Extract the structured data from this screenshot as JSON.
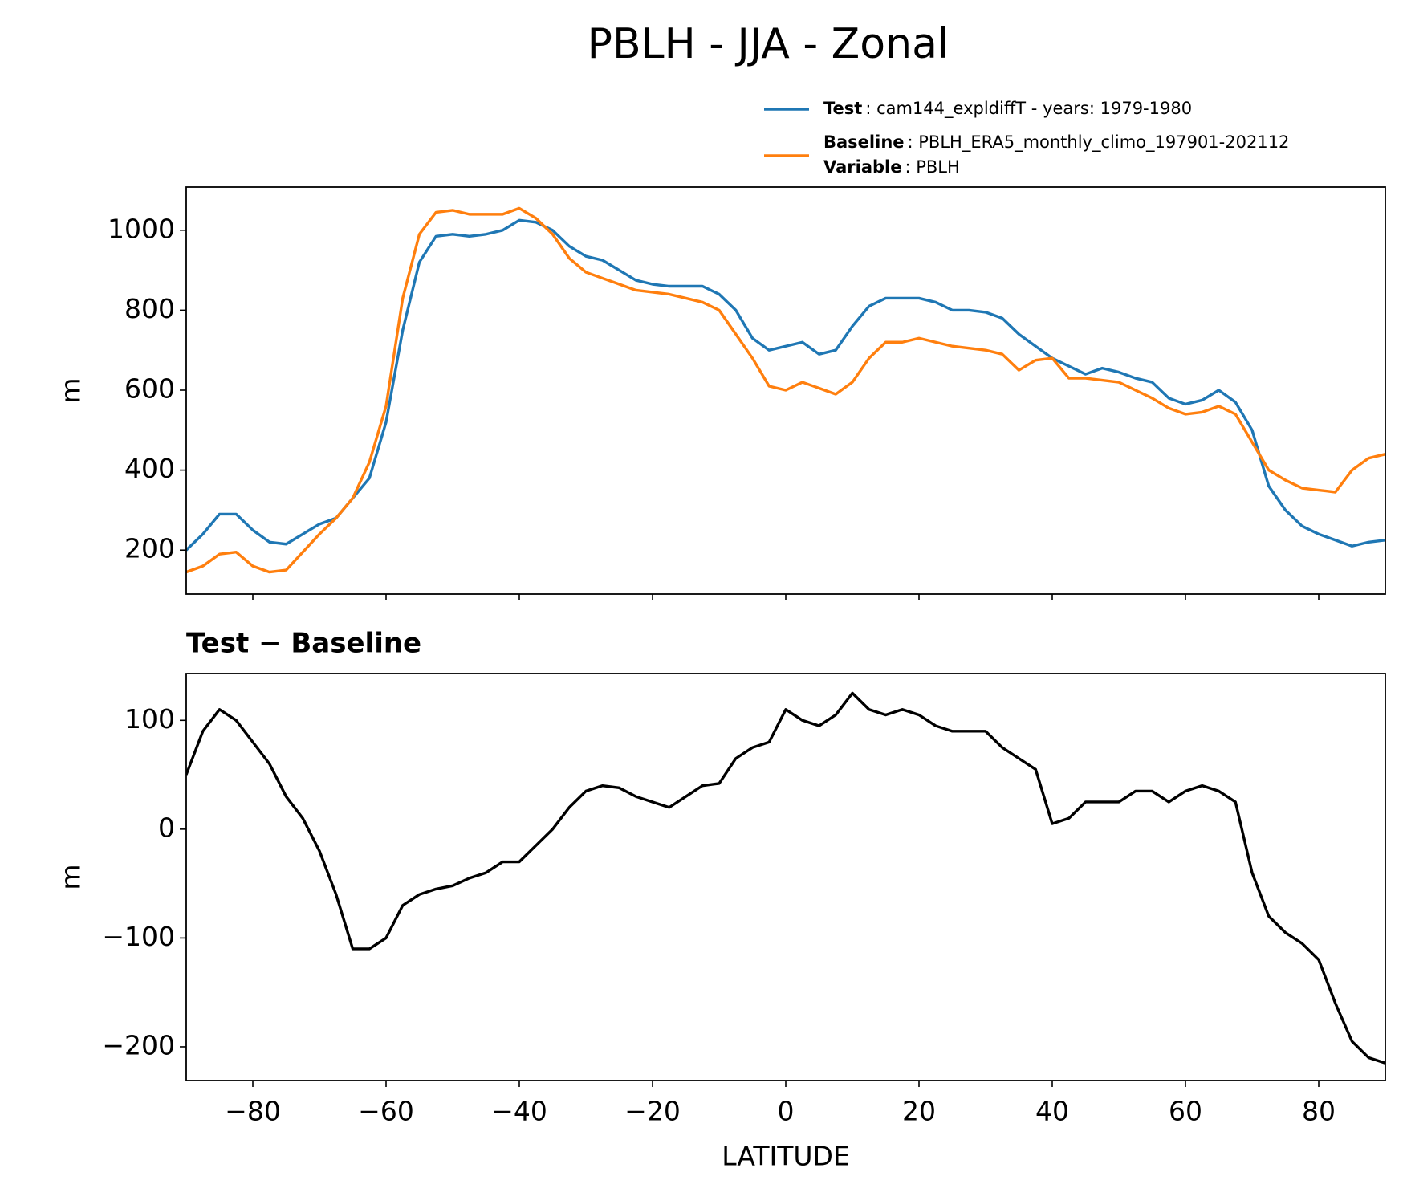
{
  "chart_data": [
    {
      "type": "line",
      "title": "PBLH - JJA - Zonal",
      "ylabel": "m",
      "x": [
        -90,
        -87.5,
        -85,
        -82.5,
        -80,
        -77.5,
        -75,
        -72.5,
        -70,
        -67.5,
        -65,
        -62.5,
        -60,
        -57.5,
        -55,
        -52.5,
        -50,
        -47.5,
        -45,
        -42.5,
        -40,
        -37.5,
        -35,
        -32.5,
        -30,
        -27.5,
        -25,
        -22.5,
        -20,
        -17.5,
        -15,
        -12.5,
        -10,
        -7.5,
        -5,
        -2.5,
        0,
        2.5,
        5,
        7.5,
        10,
        12.5,
        15,
        17.5,
        20,
        22.5,
        25,
        27.5,
        30,
        32.5,
        35,
        37.5,
        40,
        42.5,
        45,
        47.5,
        50,
        52.5,
        55,
        57.5,
        60,
        62.5,
        65,
        67.5,
        70,
        72.5,
        75,
        77.5,
        80,
        82.5,
        85,
        87.5,
        90
      ],
      "series": [
        {
          "name": "Test",
          "description": ": cam144_expldiffT - years: 1979-1980",
          "color": "#1f77b4",
          "values": [
            200,
            240,
            290,
            290,
            250,
            220,
            215,
            240,
            265,
            280,
            330,
            380,
            520,
            750,
            920,
            985,
            990,
            985,
            990,
            1000,
            1025,
            1020,
            1000,
            960,
            935,
            925,
            900,
            875,
            865,
            860,
            860,
            860,
            840,
            800,
            730,
            700,
            710,
            720,
            690,
            700,
            760,
            810,
            830,
            830,
            830,
            820,
            800,
            800,
            795,
            780,
            740,
            710,
            680,
            660,
            640,
            655,
            645,
            630,
            620,
            580,
            565,
            575,
            600,
            570,
            500,
            360,
            300,
            260,
            240,
            225,
            210,
            220,
            225
          ]
        },
        {
          "name": "Baseline",
          "description": ": PBLH_ERA5_monthly_climo_197901-202112",
          "color": "#ff7f0e",
          "values": [
            145,
            160,
            190,
            195,
            160,
            145,
            150,
            195,
            240,
            280,
            330,
            420,
            560,
            830,
            990,
            1045,
            1050,
            1040,
            1040,
            1040,
            1055,
            1030,
            990,
            930,
            895,
            880,
            865,
            850,
            845,
            840,
            830,
            820,
            800,
            740,
            680,
            610,
            600,
            620,
            605,
            590,
            620,
            680,
            720,
            720,
            730,
            720,
            710,
            705,
            700,
            690,
            650,
            675,
            680,
            630,
            630,
            625,
            620,
            600,
            580,
            555,
            540,
            545,
            560,
            540,
            470,
            400,
            375,
            355,
            350,
            345,
            400,
            430,
            440
          ]
        }
      ],
      "legend_extra": {
        "label": "Variable",
        "text": ": PBLH"
      },
      "xlim": [
        -90,
        90
      ],
      "xticks": [
        -80,
        -60,
        -40,
        -20,
        0,
        20,
        40,
        60,
        80
      ],
      "ylim": [
        90,
        1108
      ],
      "yticks": [
        200,
        400,
        600,
        800,
        1000
      ]
    },
    {
      "type": "line",
      "title": "Test − Baseline",
      "ylabel": "m",
      "xlabel": "LATITUDE",
      "x": [
        -90,
        -87.5,
        -85,
        -82.5,
        -80,
        -77.5,
        -75,
        -72.5,
        -70,
        -67.5,
        -65,
        -62.5,
        -60,
        -57.5,
        -55,
        -52.5,
        -50,
        -47.5,
        -45,
        -42.5,
        -40,
        -37.5,
        -35,
        -32.5,
        -30,
        -27.5,
        -25,
        -22.5,
        -20,
        -17.5,
        -15,
        -12.5,
        -10,
        -7.5,
        -5,
        -2.5,
        0,
        2.5,
        5,
        7.5,
        10,
        12.5,
        15,
        17.5,
        20,
        22.5,
        25,
        27.5,
        30,
        32.5,
        35,
        37.5,
        40,
        42.5,
        45,
        47.5,
        50,
        52.5,
        55,
        57.5,
        60,
        62.5,
        65,
        67.5,
        70,
        72.5,
        75,
        77.5,
        80,
        82.5,
        85,
        87.5,
        90
      ],
      "series": [
        {
          "color": "#000000",
          "values": [
            50,
            90,
            110,
            100,
            80,
            60,
            30,
            10,
            -20,
            -60,
            -110,
            -110,
            -100,
            -70,
            -60,
            -55,
            -52,
            -45,
            -40,
            -30,
            -30,
            -15,
            0,
            20,
            35,
            40,
            38,
            30,
            25,
            20,
            30,
            40,
            42,
            65,
            75,
            80,
            110,
            100,
            95,
            105,
            125,
            110,
            105,
            110,
            105,
            95,
            90,
            90,
            90,
            75,
            65,
            55,
            5,
            10,
            25,
            25,
            25,
            35,
            35,
            25,
            35,
            40,
            35,
            25,
            -40,
            -80,
            -95,
            -105,
            -120,
            -160,
            -195,
            -210,
            -215
          ]
        }
      ],
      "xlim": [
        -90,
        90
      ],
      "xticks": [
        {
          "value": -80,
          "label": "−80"
        },
        {
          "value": -60,
          "label": "−60"
        },
        {
          "value": -40,
          "label": "−40"
        },
        {
          "value": -20,
          "label": "−20"
        },
        0,
        20,
        40,
        60,
        80
      ],
      "ylim": [
        -231,
        143
      ],
      "yticks": [
        {
          "value": -200,
          "label": "−200"
        },
        {
          "value": -100,
          "label": "−100"
        },
        0,
        100
      ]
    }
  ]
}
